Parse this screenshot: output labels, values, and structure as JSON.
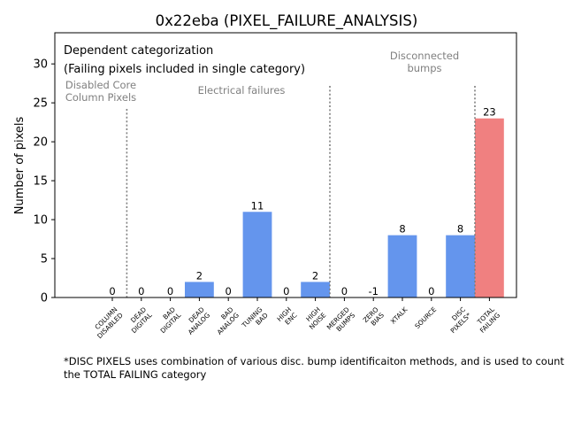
{
  "chart_data": {
    "type": "bar",
    "title": "0x22eba (PIXEL_FAILURE_ANALYSIS)",
    "ylabel": "Number of pixels",
    "xlabel": "",
    "ylim": [
      0,
      34
    ],
    "yticks": [
      0,
      5,
      10,
      15,
      20,
      25,
      30
    ],
    "categories": [
      "COLUMN\nDISABLED",
      "DEAD\nDIGITAL",
      "BAD\nDIGITAL",
      "DEAD\nANALOG",
      "BAD\nANALOG",
      "TUNING\nBAD",
      "HIGH\nENC",
      "HIGH\nNOISE",
      "MERGED\nBUMPS",
      "ZERO\nBIAS",
      "XTALK",
      "SOURCE",
      "DISC\nPIXELS*",
      "TOTAL\nFAILING"
    ],
    "values": [
      0,
      0,
      0,
      2,
      0,
      11,
      0,
      2,
      0,
      -1,
      8,
      0,
      8,
      23
    ],
    "value_labels": [
      "0",
      "0",
      "0",
      "2",
      "0",
      "11",
      "0",
      "2",
      "0",
      "-1",
      "8",
      "0",
      "8",
      "23"
    ],
    "colors": {
      "bar": "#6495ed",
      "total": "#f08080",
      "divider": "#7f7f7f",
      "group_text": "#808080",
      "axis": "#000000"
    },
    "groups": [
      {
        "label": "Disabled Core\nColumn Pixels"
      },
      {
        "label": "Electrical failures"
      },
      {
        "label": "Disconnected\nbumps"
      }
    ],
    "annotations": [
      "Dependent categorization",
      "(Failing pixels included in single category)"
    ]
  },
  "footnote": "*DISC PIXELS uses combination of various disc. bump identificaiton methods, and is used to count the TOTAL FAILING category"
}
